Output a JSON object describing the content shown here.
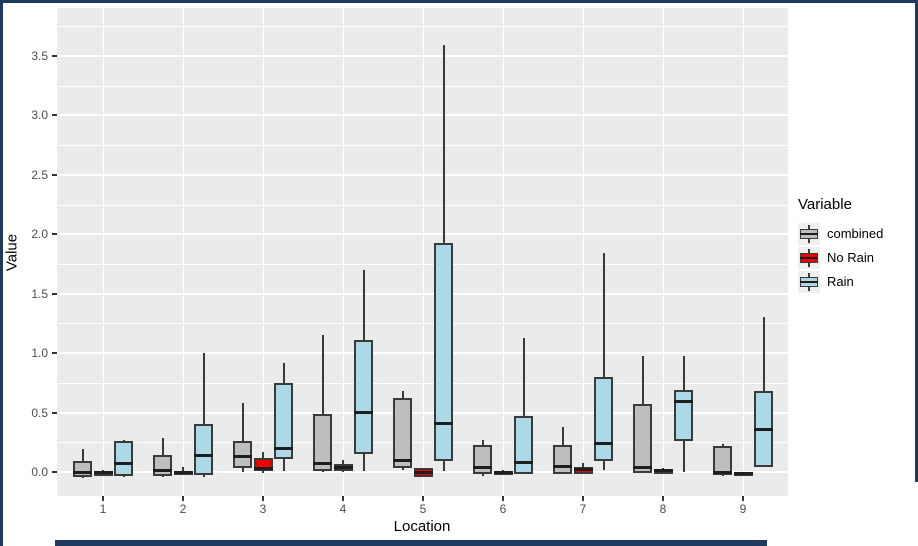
{
  "frame": {
    "color": "#20395e"
  },
  "chart_data": {
    "type": "boxplot",
    "title": "",
    "xlabel": "Location",
    "ylabel": "Value",
    "categories": [
      "1",
      "2",
      "3",
      "4",
      "5",
      "6",
      "7",
      "8",
      "9"
    ],
    "y_ticks": [
      0.0,
      0.5,
      1.0,
      1.5,
      2.0,
      2.5,
      3.0,
      3.5
    ],
    "ylim": [
      -0.2,
      3.9
    ],
    "grid": true,
    "panel_bg": "#EBEBEB",
    "grid_color": "#FFFFFF",
    "box_outline": "#3A3A3A",
    "legend": {
      "title": "Variable",
      "position": "right"
    },
    "box_stats_order": [
      "low",
      "q1",
      "median",
      "q3",
      "high"
    ],
    "series": [
      {
        "name": "combined",
        "color": "#BEBEBE",
        "boxes": [
          [
            -0.05,
            -0.04,
            0.0,
            0.09,
            0.19
          ],
          [
            -0.04,
            -0.03,
            0.01,
            0.14,
            0.29
          ],
          [
            0.0,
            0.03,
            0.13,
            0.26,
            0.58
          ],
          [
            0.0,
            0.01,
            0.07,
            0.49,
            1.15
          ],
          [
            0.02,
            0.03,
            0.1,
            0.62,
            0.68
          ],
          [
            -0.03,
            -0.02,
            0.04,
            0.23,
            0.27
          ],
          [
            -0.02,
            -0.02,
            0.05,
            0.23,
            0.38
          ],
          [
            -0.01,
            -0.01,
            0.04,
            0.57,
            0.98
          ],
          [
            -0.03,
            -0.03,
            0.0,
            0.22,
            0.24
          ]
        ]
      },
      {
        "name": "No Rain",
        "color": "#EE0000",
        "boxes": [
          [
            -0.03,
            -0.03,
            0.0,
            0.01,
            0.02
          ],
          [
            -0.02,
            -0.02,
            0.0,
            0.01,
            0.04
          ],
          [
            -0.01,
            0.01,
            0.03,
            0.12,
            0.17
          ],
          [
            0.0,
            0.01,
            0.04,
            0.07,
            0.1
          ],
          [
            -0.04,
            -0.04,
            0.0,
            0.03,
            0.03
          ],
          [
            -0.01,
            -0.01,
            0.0,
            0.01,
            0.02
          ],
          [
            -0.02,
            -0.02,
            0.02,
            0.04,
            0.08
          ],
          [
            -0.02,
            -0.01,
            0.01,
            0.02,
            0.03
          ],
          [
            -0.02,
            -0.01,
            -0.01,
            0.0,
            0.0
          ]
        ]
      },
      {
        "name": "Rain",
        "color": "#ADD8E6",
        "boxes": [
          [
            -0.04,
            -0.03,
            0.07,
            0.26,
            0.27
          ],
          [
            -0.04,
            -0.03,
            0.14,
            0.4,
            1.0
          ],
          [
            0.01,
            0.11,
            0.2,
            0.75,
            0.92
          ],
          [
            0.01,
            0.15,
            0.5,
            1.11,
            1.7
          ],
          [
            0.01,
            0.09,
            0.41,
            1.93,
            3.59
          ],
          [
            -0.02,
            -0.02,
            0.08,
            0.47,
            1.13
          ],
          [
            0.02,
            0.09,
            0.24,
            0.8,
            1.84
          ],
          [
            0.0,
            0.26,
            0.59,
            0.69,
            0.98
          ],
          [
            0.04,
            0.04,
            0.36,
            0.68,
            1.3
          ]
        ]
      }
    ]
  }
}
